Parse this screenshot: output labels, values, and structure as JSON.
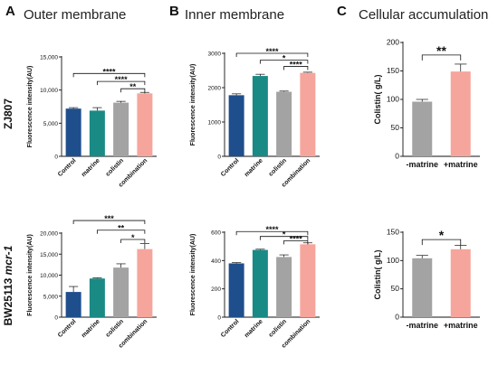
{
  "panel_letters": [
    "A",
    "B",
    "C"
  ],
  "panel_titles": [
    "Outer membrane",
    "Inner membrane",
    "Cellular accumulation"
  ],
  "row_labels": {
    "top": "ZJ807",
    "bottom_prefix": "BW25113 ",
    "bottom_gene": "mcr-1"
  },
  "colors": {
    "Control": "#1f4e8c",
    "matrine": "#1a8a85",
    "colistin": "#a3a3a3",
    "combination": "#f6a59c",
    "-matrine": "#a3a3a3",
    "+matrine": "#f6a59c"
  },
  "chart_data": [
    {
      "id": "A1",
      "type": "bar",
      "title": "Outer membrane",
      "row": "ZJ807",
      "ylabel": "Fluorescence intensity(AU)",
      "ylim": [
        0,
        15000
      ],
      "yticks": [
        0,
        5000,
        10000,
        15000
      ],
      "ytick_labels": [
        "0",
        "5,000",
        "10,000",
        "15,000"
      ],
      "categories": [
        "Control",
        "matrine",
        "colistin",
        "combination"
      ],
      "values": [
        7200,
        6900,
        8100,
        9500
      ],
      "errors": [
        150,
        450,
        200,
        150
      ],
      "significance": [
        {
          "from": 0,
          "to": 3,
          "label": "****",
          "y": 12500
        },
        {
          "from": 1,
          "to": 3,
          "label": "****",
          "y": 11300
        },
        {
          "from": 2,
          "to": 3,
          "label": "**",
          "y": 10200
        }
      ]
    },
    {
      "id": "B1",
      "type": "bar",
      "title": "Inner membrane",
      "row": "ZJ807",
      "ylabel": "Fluorescence intensity(AU)",
      "ylim": [
        0,
        3000
      ],
      "yticks": [
        0,
        1000,
        2000,
        3000
      ],
      "ytick_labels": [
        "0",
        "1000",
        "2000",
        "3000"
      ],
      "categories": [
        "Control",
        "matrine",
        "colistin",
        "combination"
      ],
      "values": [
        1780,
        2340,
        1880,
        2430
      ],
      "errors": [
        40,
        50,
        20,
        20
      ],
      "significance": [
        {
          "from": 0,
          "to": 3,
          "label": "****",
          "y": 3000
        },
        {
          "from": 1,
          "to": 3,
          "label": "*",
          "y": 2800
        },
        {
          "from": 2,
          "to": 3,
          "label": "****",
          "y": 2620
        }
      ]
    },
    {
      "id": "C1",
      "type": "bar",
      "title": "Cellular accumulation",
      "row": "ZJ807",
      "ylabel": "Colistin( g/L)",
      "ylim": [
        0,
        200
      ],
      "yticks": [
        0,
        50,
        100,
        150,
        200
      ],
      "ytick_labels": [
        "0",
        "50",
        "100",
        "150",
        "200"
      ],
      "categories": [
        "-matrine",
        "+matrine"
      ],
      "values": [
        96,
        149
      ],
      "errors": [
        4,
        13
      ],
      "significance": [
        {
          "from": 0,
          "to": 1,
          "label": "**",
          "y": 178
        }
      ]
    },
    {
      "id": "A2",
      "type": "bar",
      "row": "BW25113 mcr-1",
      "ylabel": "Fluorescence intensity(AU)",
      "ylim": [
        0,
        20000
      ],
      "yticks": [
        0,
        5000,
        10000,
        15000,
        20000
      ],
      "ytick_labels": [
        "0",
        "5,000",
        "10,000",
        "15,000",
        "20,000"
      ],
      "categories": [
        "Control",
        "matrine",
        "colistin",
        "combination"
      ],
      "values": [
        6000,
        9200,
        11800,
        16200
      ],
      "errors": [
        1300,
        150,
        900,
        1300
      ],
      "significance": [
        {
          "from": 0,
          "to": 3,
          "label": "***",
          "y": 23000
        },
        {
          "from": 1,
          "to": 3,
          "label": "**",
          "y": 20700
        },
        {
          "from": 2,
          "to": 3,
          "label": "*",
          "y": 18500
        }
      ]
    },
    {
      "id": "B2",
      "type": "bar",
      "row": "BW25113 mcr-1",
      "ylabel": "Fluorescence intensity(AU)",
      "ylim": [
        0,
        600
      ],
      "yticks": [
        0,
        200,
        400,
        600
      ],
      "ytick_labels": [
        "0",
        "200",
        "400",
        "600"
      ],
      "categories": [
        "Control",
        "matrine",
        "colistin",
        "combination"
      ],
      "values": [
        380,
        475,
        425,
        515
      ],
      "errors": [
        5,
        5,
        15,
        10
      ],
      "significance": [
        {
          "from": 0,
          "to": 3,
          "label": "****",
          "y": 605
        },
        {
          "from": 1,
          "to": 3,
          "label": "*",
          "y": 570
        },
        {
          "from": 2,
          "to": 3,
          "label": "****",
          "y": 540
        }
      ]
    },
    {
      "id": "C2",
      "type": "bar",
      "row": "BW25113 mcr-1",
      "ylabel": "Colistin( g/L)",
      "ylim": [
        0,
        150
      ],
      "yticks": [
        0,
        50,
        100,
        150
      ],
      "ytick_labels": [
        "0",
        "50",
        "100",
        "150"
      ],
      "categories": [
        "-matrine",
        "+matrine"
      ],
      "values": [
        104,
        120
      ],
      "errors": [
        5,
        7
      ],
      "significance": [
        {
          "from": 0,
          "to": 1,
          "label": "*",
          "y": 137
        }
      ]
    }
  ]
}
